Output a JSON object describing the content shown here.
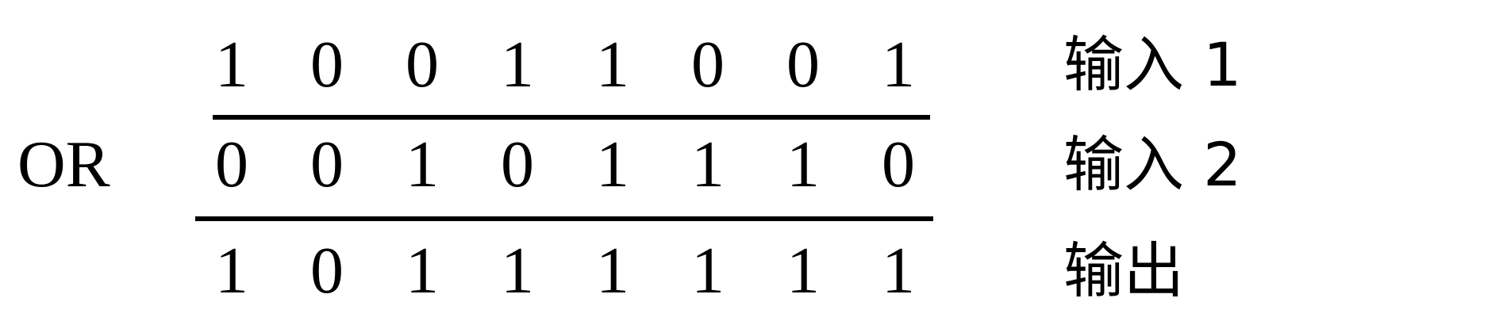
{
  "operator": "OR",
  "rows": [
    {
      "bits": [
        "1",
        "0",
        "0",
        "1",
        "1",
        "0",
        "0",
        "1"
      ],
      "label": "输入 1"
    },
    {
      "bits": [
        "0",
        "0",
        "1",
        "0",
        "1",
        "1",
        "1",
        "0"
      ],
      "label": "输入 2"
    },
    {
      "bits": [
        "1",
        "0",
        "1",
        "1",
        "1",
        "1",
        "1",
        "1"
      ],
      "label": "输出"
    }
  ]
}
